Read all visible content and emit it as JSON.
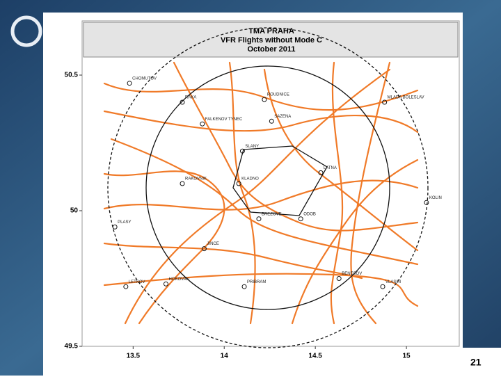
{
  "slide": {
    "page_number": "21"
  },
  "map": {
    "title": [
      "TMA PRAHA",
      "VFR Flights without Mode C",
      "October 2011"
    ],
    "xlim": [
      13.22,
      15.29
    ],
    "ylim": [
      49.5,
      50.7
    ],
    "xticks": [
      13.5,
      14,
      14.5,
      15
    ],
    "yticks": [
      49.5,
      50,
      50.5
    ],
    "track_color": "#f07a28",
    "places": [
      {
        "name": "CHOMUTOV",
        "x": 13.48,
        "y": 50.47
      },
      {
        "name": "RAKA",
        "x": 13.77,
        "y": 50.4
      },
      {
        "name": "ROUDNICE",
        "x": 14.22,
        "y": 50.41
      },
      {
        "name": "MLADA BOLESLAV",
        "x": 14.88,
        "y": 50.4
      },
      {
        "name": "FALKENOV TYNEC",
        "x": 13.88,
        "y": 50.32
      },
      {
        "name": "SAZENA",
        "x": 14.26,
        "y": 50.33
      },
      {
        "name": "SLANY",
        "x": 14.1,
        "y": 50.22
      },
      {
        "name": "RAKOVNIK",
        "x": 13.77,
        "y": 50.1
      },
      {
        "name": "KLADNO",
        "x": 14.08,
        "y": 50.1
      },
      {
        "name": "LATNA",
        "x": 14.53,
        "y": 50.14
      },
      {
        "name": "KOLIN",
        "x": 15.11,
        "y": 50.03
      },
      {
        "name": "BREZOVE",
        "x": 14.19,
        "y": 49.97
      },
      {
        "name": "ODOB",
        "x": 14.42,
        "y": 49.97
      },
      {
        "name": "PLASY",
        "x": 13.4,
        "y": 49.94
      },
      {
        "name": "JINCE",
        "x": 13.89,
        "y": 49.86
      },
      {
        "name": "LETKOV",
        "x": 13.46,
        "y": 49.72
      },
      {
        "name": "HOKOVAN",
        "x": 13.68,
        "y": 49.73
      },
      {
        "name": "PRIBRAM",
        "x": 14.11,
        "y": 49.72
      },
      {
        "name": "BENESOV",
        "x": 14.63,
        "y": 49.75
      },
      {
        "name": "VLASIM",
        "x": 14.87,
        "y": 49.72
      }
    ]
  }
}
